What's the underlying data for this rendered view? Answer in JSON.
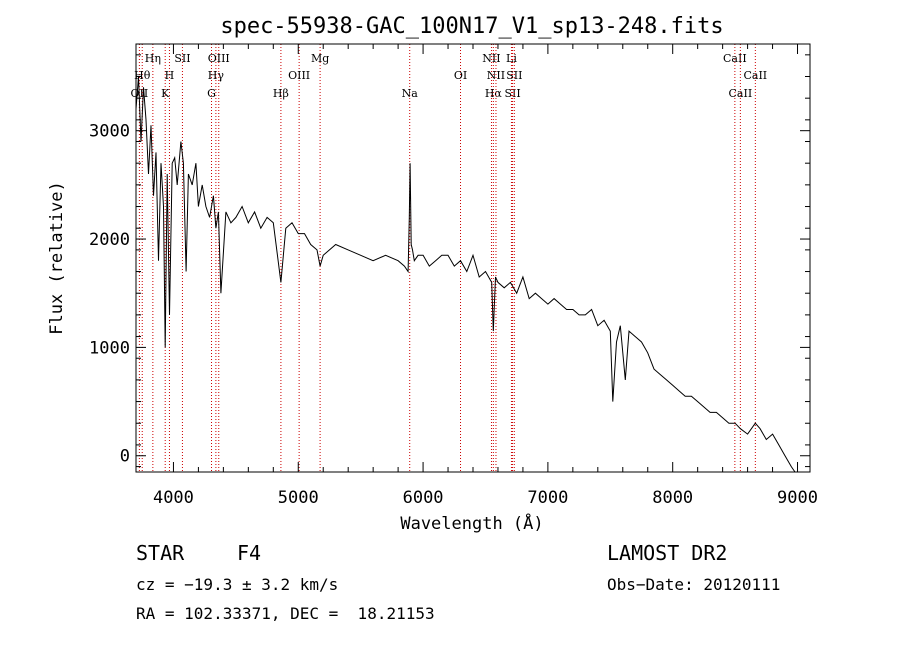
{
  "chart_data": {
    "type": "line",
    "title": "spec-55938-GAC_100N17_V1_sp13-248.fits",
    "xlabel": "Wavelength (Å)",
    "ylabel": "Flux (relative)",
    "xlim": [
      3700,
      9100
    ],
    "ylim": [
      -150,
      3800
    ],
    "xticks": [
      4000,
      5000,
      6000,
      7000,
      8000,
      9000
    ],
    "yticks": [
      0,
      1000,
      2000,
      3000
    ],
    "grid": false,
    "series": [
      {
        "x": [
          3700,
          3720,
          3740,
          3760,
          3780,
          3800,
          3820,
          3840,
          3860,
          3880,
          3900,
          3920,
          3934,
          3950,
          3968,
          3990,
          4010,
          4030,
          4060,
          4080,
          4101,
          4120,
          4150,
          4180,
          4200,
          4230,
          4260,
          4290,
          4320,
          4340,
          4360,
          4380,
          4420,
          4460,
          4500,
          4550,
          4600,
          4650,
          4700,
          4750,
          4800,
          4861,
          4900,
          4950,
          5000,
          5050,
          5100,
          5150,
          5175,
          5200,
          5300,
          5400,
          5500,
          5600,
          5700,
          5800,
          5850,
          5880,
          5890,
          5896,
          5905,
          5915,
          5930,
          5960,
          6000,
          6050,
          6100,
          6150,
          6200,
          6250,
          6300,
          6350,
          6400,
          6450,
          6500,
          6550,
          6563,
          6580,
          6600,
          6650,
          6700,
          6750,
          6800,
          6850,
          6900,
          6950,
          7000,
          7050,
          7100,
          7150,
          7200,
          7250,
          7300,
          7350,
          7400,
          7450,
          7500,
          7520,
          7550,
          7580,
          7620,
          7650,
          7700,
          7750,
          7800,
          7850,
          7900,
          7950,
          8000,
          8050,
          8100,
          8150,
          8200,
          8250,
          8300,
          8350,
          8400,
          8450,
          8500,
          8542,
          8600,
          8662,
          8700,
          8750,
          8800,
          8850,
          8900,
          8950,
          8980,
          9000
        ],
        "y": [
          3200,
          3500,
          2900,
          3400,
          3100,
          2600,
          3050,
          2400,
          2800,
          1800,
          2700,
          2300,
          1000,
          2600,
          1300,
          2700,
          2750,
          2500,
          2900,
          2700,
          1700,
          2600,
          2500,
          2700,
          2300,
          2500,
          2300,
          2200,
          2400,
          2100,
          2250,
          1500,
          2250,
          2150,
          2200,
          2300,
          2150,
          2250,
          2100,
          2200,
          2150,
          1600,
          2100,
          2150,
          2050,
          2050,
          1950,
          1900,
          1750,
          1850,
          1950,
          1900,
          1850,
          1800,
          1850,
          1800,
          1750,
          1700,
          2200,
          2700,
          1950,
          1900,
          1800,
          1850,
          1850,
          1750,
          1800,
          1850,
          1850,
          1750,
          1800,
          1700,
          1850,
          1650,
          1700,
          1600,
          1150,
          1650,
          1600,
          1550,
          1600,
          1500,
          1650,
          1450,
          1500,
          1450,
          1400,
          1450,
          1400,
          1350,
          1350,
          1300,
          1300,
          1350,
          1200,
          1250,
          1150,
          500,
          1050,
          1200,
          700,
          1150,
          1100,
          1050,
          950,
          800,
          750,
          700,
          650,
          600,
          550,
          550,
          500,
          450,
          400,
          400,
          350,
          300,
          300,
          250,
          200,
          300,
          250,
          150,
          200,
          100,
          0,
          -100,
          -150,
          -150
        ]
      }
    ],
    "lines": [
      {
        "label": "OII",
        "x": 3727,
        "row": 2
      },
      {
        "label": "Hθ",
        "x": 3750,
        "row": 1
      },
      {
        "label": "Hη",
        "x": 3835,
        "row": 0
      },
      {
        "label": "K",
        "x": 3934,
        "row": 2
      },
      {
        "label": "H",
        "x": 3968,
        "row": 1
      },
      {
        "label": "SII",
        "x": 4072,
        "row": 0
      },
      {
        "label": "G",
        "x": 4305,
        "row": 2
      },
      {
        "label": "Hγ",
        "x": 4340,
        "row": 1
      },
      {
        "label": "OIII",
        "x": 4363,
        "row": 0
      },
      {
        "label": "Hβ",
        "x": 4861,
        "row": 2
      },
      {
        "label": "OIII",
        "x": 5007,
        "row": 1
      },
      {
        "label": "Mg",
        "x": 5175,
        "row": 0
      },
      {
        "label": "Na",
        "x": 5893,
        "row": 2
      },
      {
        "label": "OI",
        "x": 6300,
        "row": 1
      },
      {
        "label": "NII",
        "x": 6548,
        "row": 0
      },
      {
        "label": "Hα",
        "x": 6563,
        "row": 2
      },
      {
        "label": "NII",
        "x": 6584,
        "row": 1
      },
      {
        "label": "Li",
        "x": 6708,
        "row": 0
      },
      {
        "label": "SII",
        "x": 6717,
        "row": 2
      },
      {
        "label": "SII",
        "x": 6731,
        "row": 1
      },
      {
        "label": "CaII",
        "x": 8498,
        "row": 0
      },
      {
        "label": "CaII",
        "x": 8542,
        "row": 2
      },
      {
        "label": "CaII",
        "x": 8662,
        "row": 1
      }
    ]
  },
  "info": {
    "class": "STAR",
    "subclass": "F4",
    "survey": "LAMOST DR2",
    "cz": "cz = −19.3 ± 3.2 km/s",
    "obs_date": "Obs−Date: 20120111",
    "coords": "RA = 102.33371, DEC =  18.21153"
  },
  "colors": {
    "axes": "#000000",
    "spectrum": "#000000",
    "line_markers": "#cc0000"
  }
}
